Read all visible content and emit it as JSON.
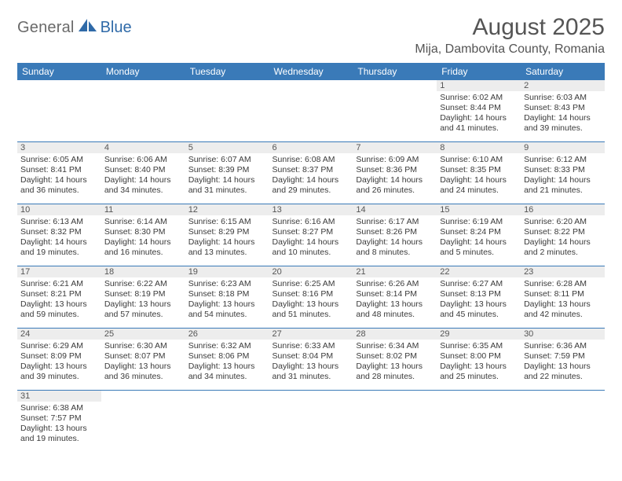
{
  "title": "August 2025",
  "location": "Mija, Dambovita County, Romania",
  "logo": {
    "general": "General",
    "blue": "Blue"
  },
  "colors": {
    "header_bg": "#3a7ab8",
    "header_fg": "#ffffff",
    "daynum_bg": "#ededed",
    "divider": "#3a7ab8",
    "title": "#555555",
    "text": "#333333"
  },
  "dow": [
    "Sunday",
    "Monday",
    "Tuesday",
    "Wednesday",
    "Thursday",
    "Friday",
    "Saturday"
  ],
  "weeks": [
    [
      null,
      null,
      null,
      null,
      null,
      {
        "n": "1",
        "sr": "Sunrise: 6:02 AM",
        "ss": "Sunset: 8:44 PM",
        "d1": "Daylight: 14 hours",
        "d2": "and 41 minutes."
      },
      {
        "n": "2",
        "sr": "Sunrise: 6:03 AM",
        "ss": "Sunset: 8:43 PM",
        "d1": "Daylight: 14 hours",
        "d2": "and 39 minutes."
      }
    ],
    [
      {
        "n": "3",
        "sr": "Sunrise: 6:05 AM",
        "ss": "Sunset: 8:41 PM",
        "d1": "Daylight: 14 hours",
        "d2": "and 36 minutes."
      },
      {
        "n": "4",
        "sr": "Sunrise: 6:06 AM",
        "ss": "Sunset: 8:40 PM",
        "d1": "Daylight: 14 hours",
        "d2": "and 34 minutes."
      },
      {
        "n": "5",
        "sr": "Sunrise: 6:07 AM",
        "ss": "Sunset: 8:39 PM",
        "d1": "Daylight: 14 hours",
        "d2": "and 31 minutes."
      },
      {
        "n": "6",
        "sr": "Sunrise: 6:08 AM",
        "ss": "Sunset: 8:37 PM",
        "d1": "Daylight: 14 hours",
        "d2": "and 29 minutes."
      },
      {
        "n": "7",
        "sr": "Sunrise: 6:09 AM",
        "ss": "Sunset: 8:36 PM",
        "d1": "Daylight: 14 hours",
        "d2": "and 26 minutes."
      },
      {
        "n": "8",
        "sr": "Sunrise: 6:10 AM",
        "ss": "Sunset: 8:35 PM",
        "d1": "Daylight: 14 hours",
        "d2": "and 24 minutes."
      },
      {
        "n": "9",
        "sr": "Sunrise: 6:12 AM",
        "ss": "Sunset: 8:33 PM",
        "d1": "Daylight: 14 hours",
        "d2": "and 21 minutes."
      }
    ],
    [
      {
        "n": "10",
        "sr": "Sunrise: 6:13 AM",
        "ss": "Sunset: 8:32 PM",
        "d1": "Daylight: 14 hours",
        "d2": "and 19 minutes."
      },
      {
        "n": "11",
        "sr": "Sunrise: 6:14 AM",
        "ss": "Sunset: 8:30 PM",
        "d1": "Daylight: 14 hours",
        "d2": "and 16 minutes."
      },
      {
        "n": "12",
        "sr": "Sunrise: 6:15 AM",
        "ss": "Sunset: 8:29 PM",
        "d1": "Daylight: 14 hours",
        "d2": "and 13 minutes."
      },
      {
        "n": "13",
        "sr": "Sunrise: 6:16 AM",
        "ss": "Sunset: 8:27 PM",
        "d1": "Daylight: 14 hours",
        "d2": "and 10 minutes."
      },
      {
        "n": "14",
        "sr": "Sunrise: 6:17 AM",
        "ss": "Sunset: 8:26 PM",
        "d1": "Daylight: 14 hours",
        "d2": "and 8 minutes."
      },
      {
        "n": "15",
        "sr": "Sunrise: 6:19 AM",
        "ss": "Sunset: 8:24 PM",
        "d1": "Daylight: 14 hours",
        "d2": "and 5 minutes."
      },
      {
        "n": "16",
        "sr": "Sunrise: 6:20 AM",
        "ss": "Sunset: 8:22 PM",
        "d1": "Daylight: 14 hours",
        "d2": "and 2 minutes."
      }
    ],
    [
      {
        "n": "17",
        "sr": "Sunrise: 6:21 AM",
        "ss": "Sunset: 8:21 PM",
        "d1": "Daylight: 13 hours",
        "d2": "and 59 minutes."
      },
      {
        "n": "18",
        "sr": "Sunrise: 6:22 AM",
        "ss": "Sunset: 8:19 PM",
        "d1": "Daylight: 13 hours",
        "d2": "and 57 minutes."
      },
      {
        "n": "19",
        "sr": "Sunrise: 6:23 AM",
        "ss": "Sunset: 8:18 PM",
        "d1": "Daylight: 13 hours",
        "d2": "and 54 minutes."
      },
      {
        "n": "20",
        "sr": "Sunrise: 6:25 AM",
        "ss": "Sunset: 8:16 PM",
        "d1": "Daylight: 13 hours",
        "d2": "and 51 minutes."
      },
      {
        "n": "21",
        "sr": "Sunrise: 6:26 AM",
        "ss": "Sunset: 8:14 PM",
        "d1": "Daylight: 13 hours",
        "d2": "and 48 minutes."
      },
      {
        "n": "22",
        "sr": "Sunrise: 6:27 AM",
        "ss": "Sunset: 8:13 PM",
        "d1": "Daylight: 13 hours",
        "d2": "and 45 minutes."
      },
      {
        "n": "23",
        "sr": "Sunrise: 6:28 AM",
        "ss": "Sunset: 8:11 PM",
        "d1": "Daylight: 13 hours",
        "d2": "and 42 minutes."
      }
    ],
    [
      {
        "n": "24",
        "sr": "Sunrise: 6:29 AM",
        "ss": "Sunset: 8:09 PM",
        "d1": "Daylight: 13 hours",
        "d2": "and 39 minutes."
      },
      {
        "n": "25",
        "sr": "Sunrise: 6:30 AM",
        "ss": "Sunset: 8:07 PM",
        "d1": "Daylight: 13 hours",
        "d2": "and 36 minutes."
      },
      {
        "n": "26",
        "sr": "Sunrise: 6:32 AM",
        "ss": "Sunset: 8:06 PM",
        "d1": "Daylight: 13 hours",
        "d2": "and 34 minutes."
      },
      {
        "n": "27",
        "sr": "Sunrise: 6:33 AM",
        "ss": "Sunset: 8:04 PM",
        "d1": "Daylight: 13 hours",
        "d2": "and 31 minutes."
      },
      {
        "n": "28",
        "sr": "Sunrise: 6:34 AM",
        "ss": "Sunset: 8:02 PM",
        "d1": "Daylight: 13 hours",
        "d2": "and 28 minutes."
      },
      {
        "n": "29",
        "sr": "Sunrise: 6:35 AM",
        "ss": "Sunset: 8:00 PM",
        "d1": "Daylight: 13 hours",
        "d2": "and 25 minutes."
      },
      {
        "n": "30",
        "sr": "Sunrise: 6:36 AM",
        "ss": "Sunset: 7:59 PM",
        "d1": "Daylight: 13 hours",
        "d2": "and 22 minutes."
      }
    ],
    [
      {
        "n": "31",
        "sr": "Sunrise: 6:38 AM",
        "ss": "Sunset: 7:57 PM",
        "d1": "Daylight: 13 hours",
        "d2": "and 19 minutes."
      },
      null,
      null,
      null,
      null,
      null,
      null
    ]
  ]
}
